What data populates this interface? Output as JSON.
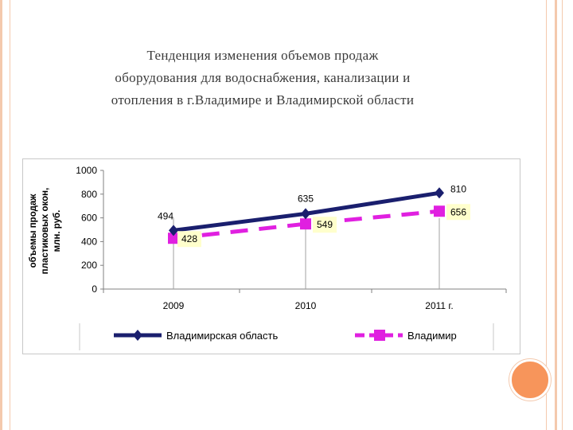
{
  "title": {
    "line1": "Тенденция изменения объемов продаж",
    "line2": "оборудования для водоснабжения, канализации и",
    "line3": "отопления в г.Владимире и Владимирской области"
  },
  "colors": {
    "frame": "#f4c9ad",
    "accent_circle": "#f7955b",
    "series_region": "#1a1f6e",
    "series_city": "#e020e0",
    "label_bg": "#ffffcc"
  },
  "chart_data": {
    "type": "line",
    "title": "",
    "ylabel": "объемы продаж пластиковых окон, млн. руб.",
    "xlabel": "",
    "categories": [
      "2009",
      "2010",
      "2011  г."
    ],
    "ylim": [
      0,
      1000
    ],
    "yticks": [
      "0",
      "200",
      "400",
      "600",
      "800",
      "1000"
    ],
    "grid": false,
    "legend_position": "bottom",
    "series": [
      {
        "name": "Владимирская область",
        "values": [
          494,
          635,
          810
        ],
        "labels": [
          "494",
          "635",
          "810"
        ],
        "style": "solid",
        "color": "#1a1f6e",
        "marker": "diamond"
      },
      {
        "name": "Владимир",
        "values": [
          428,
          549,
          656
        ],
        "labels": [
          "428",
          "549",
          "656"
        ],
        "style": "dashed",
        "color": "#e020e0",
        "marker": "square"
      }
    ]
  }
}
